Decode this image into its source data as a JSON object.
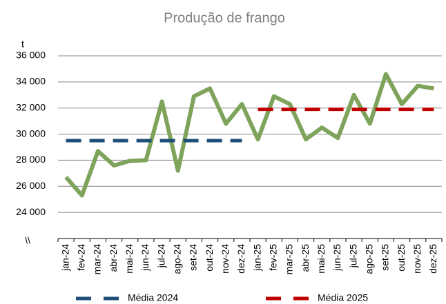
{
  "chart_data": {
    "type": "line",
    "title": "Produção de frango",
    "y_label": "t",
    "axis_break": "\\\\",
    "categories": [
      "jan-24",
      "fev-24",
      "mar-24",
      "abr-24",
      "mai-24",
      "jun-24",
      "jul-24",
      "ago-24",
      "set-24",
      "out-24",
      "nov-24",
      "dez-24",
      "jan-25",
      "fev-25",
      "mar-25",
      "abr-25",
      "mai-25",
      "jun-25",
      "jul-25",
      "ago-25",
      "set-25",
      "out-25",
      "nov-25",
      "dez-25"
    ],
    "series": [
      {
        "color": "#7ea35a",
        "values": [
          26700,
          25300,
          28700,
          27600,
          27950,
          28000,
          32500,
          27200,
          32900,
          33500,
          30800,
          32300,
          29600,
          32900,
          32300,
          29600,
          30500,
          29700,
          33000,
          30800,
          34600,
          32300,
          33700,
          33500
        ]
      },
      {
        "name": "Média 2024",
        "color": "#1f4e79",
        "dashed": true,
        "values": [
          29500,
          29500,
          29500,
          29500,
          29500,
          29500,
          29500,
          29500,
          29500,
          29500,
          29500,
          29500,
          null,
          null,
          null,
          null,
          null,
          null,
          null,
          null,
          null,
          null,
          null,
          null
        ]
      },
      {
        "name": "Média 2025",
        "color": "#c00000",
        "dashed": true,
        "values": [
          null,
          null,
          null,
          null,
          null,
          null,
          null,
          null,
          null,
          null,
          null,
          null,
          31900,
          31900,
          31900,
          31900,
          31900,
          31900,
          31900,
          31900,
          31900,
          31900,
          31900,
          31900
        ]
      }
    ],
    "ylim": [
      22000,
      36000
    ],
    "yticks": [
      {
        "value": 24000,
        "label": "24 000"
      },
      {
        "value": 26000,
        "label": "26 000"
      },
      {
        "value": 28000,
        "label": "28 000"
      },
      {
        "value": 30000,
        "label": "30 000"
      },
      {
        "value": 32000,
        "label": "32 000"
      },
      {
        "value": 34000,
        "label": "34 000"
      },
      {
        "value": 36000,
        "label": "36 000"
      }
    ],
    "grid": true
  }
}
